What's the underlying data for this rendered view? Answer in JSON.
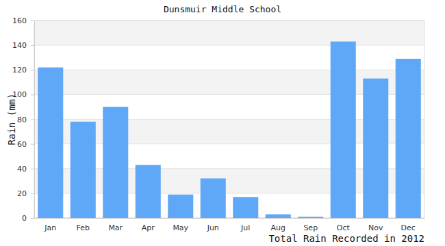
{
  "chart_data": {
    "type": "bar",
    "title": "Dunsmuir Middle School",
    "y_label": "Rain (mm)",
    "annotation": "Total Rain Recorded in 2012",
    "categories": [
      "Jan",
      "Feb",
      "Mar",
      "Apr",
      "May",
      "Jun",
      "Jul",
      "Aug",
      "Sep",
      "Oct",
      "Nov",
      "Dec"
    ],
    "values": [
      122,
      78,
      90,
      43,
      19,
      32,
      17,
      3,
      1,
      143,
      113,
      129
    ],
    "color": "#5fa7f7",
    "ylim": [
      0,
      160
    ],
    "yticks": [
      0,
      20,
      40,
      60,
      80,
      100,
      120,
      140,
      160
    ],
    "grid": true
  }
}
